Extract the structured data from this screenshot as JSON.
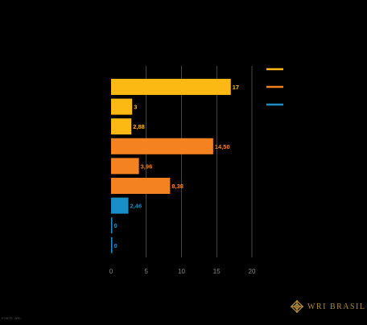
{
  "colors": {
    "yellow": "#fdb913",
    "orange": "#f58220",
    "blue": "#1a8fc7",
    "grid": "#7a7a7a",
    "background": "#000000"
  },
  "legend": [
    {
      "color": "#fdb913"
    },
    {
      "color": "#f58220"
    },
    {
      "color": "#1a8fc7"
    }
  ],
  "chart_data": {
    "type": "bar",
    "orientation": "horizontal",
    "values": [
      17,
      3,
      2.88,
      14.5,
      3.96,
      8.38,
      2.46,
      0,
      0
    ],
    "value_labels": [
      "17",
      "3",
      "2,88",
      "14,50",
      "3,96",
      "8,38",
      "2,46",
      "0",
      "0"
    ],
    "bar_colors": [
      "#fdb913",
      "#fdb913",
      "#fdb913",
      "#f58220",
      "#f58220",
      "#f58220",
      "#1a8fc7",
      "#1a8fc7",
      "#1a8fc7"
    ],
    "xlim": [
      0,
      20
    ],
    "xticks": [
      "0",
      "5",
      "10",
      "15",
      "20"
    ],
    "grid": true,
    "legend_position": "top-right"
  },
  "source_text": "FONTE: WRI",
  "logo": {
    "text": "WRI BRASIL",
    "icon": "wri-knot-icon"
  }
}
